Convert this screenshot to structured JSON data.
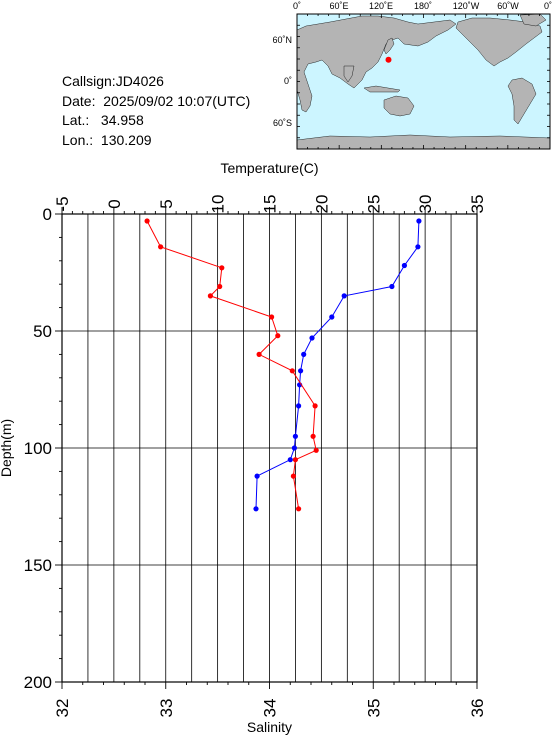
{
  "station": {
    "callsign": "Callsign:JD4026",
    "date": "Date:  2025/09/02 10:07(UTC)",
    "lat": "Lat.:   34.958",
    "lon": "Lon.:  130.209"
  },
  "inset_map": {
    "top_labels": [
      "0˚",
      "60˚E",
      "120˚E",
      "180˚",
      "120˚W",
      "60˚W",
      "0˚"
    ],
    "left_labels": [
      "60˚N",
      "0˚",
      "60˚S"
    ],
    "colors": {
      "ocean": "#ccf5ff",
      "land": "#b4b4b4",
      "marker": "#ff0000"
    },
    "marker": {
      "lat": 34.958,
      "lon": 130.209
    }
  },
  "chart_data": {
    "type": "line",
    "top_axis": {
      "label": "Temperature(C)",
      "lim": [
        -5,
        35
      ],
      "ticks": [
        "-5",
        "0",
        "5",
        "10",
        "15",
        "20",
        "25",
        "30",
        "35"
      ]
    },
    "bottom_axis": {
      "label": "Salinity",
      "lim": [
        32,
        36
      ],
      "ticks": [
        "32",
        "33",
        "34",
        "35",
        "36"
      ]
    },
    "y_axis": {
      "label": "Depth(m)",
      "lim": [
        0,
        200
      ],
      "inverted": true,
      "ticks": [
        "0",
        "50",
        "100",
        "150",
        "200"
      ]
    },
    "grid": true,
    "series": [
      {
        "axis": "temperature",
        "color": "#0000ff",
        "points": [
          {
            "x": 29.4,
            "y": 3
          },
          {
            "x": 29.3,
            "y": 14
          },
          {
            "x": 28.0,
            "y": 22
          },
          {
            "x": 26.8,
            "y": 31
          },
          {
            "x": 22.2,
            "y": 35
          },
          {
            "x": 21.0,
            "y": 44
          },
          {
            "x": 19.1,
            "y": 53
          },
          {
            "x": 18.3,
            "y": 60
          },
          {
            "x": 18.0,
            "y": 67
          },
          {
            "x": 17.9,
            "y": 73
          },
          {
            "x": 17.8,
            "y": 82
          },
          {
            "x": 17.5,
            "y": 95
          },
          {
            "x": 17.4,
            "y": 100
          },
          {
            "x": 17.0,
            "y": 105
          },
          {
            "x": 13.8,
            "y": 112
          },
          {
            "x": 13.7,
            "y": 126
          }
        ]
      },
      {
        "axis": "salinity",
        "color": "#ff0000",
        "points": [
          {
            "x": 32.82,
            "y": 3
          },
          {
            "x": 32.95,
            "y": 14
          },
          {
            "x": 33.54,
            "y": 23
          },
          {
            "x": 33.52,
            "y": 31
          },
          {
            "x": 33.43,
            "y": 35
          },
          {
            "x": 34.02,
            "y": 44
          },
          {
            "x": 34.08,
            "y": 52
          },
          {
            "x": 33.9,
            "y": 60
          },
          {
            "x": 34.22,
            "y": 67
          },
          {
            "x": 34.44,
            "y": 82
          },
          {
            "x": 34.42,
            "y": 95
          },
          {
            "x": 34.45,
            "y": 101
          },
          {
            "x": 34.25,
            "y": 105
          },
          {
            "x": 34.23,
            "y": 112
          },
          {
            "x": 34.28,
            "y": 126
          }
        ]
      }
    ]
  }
}
